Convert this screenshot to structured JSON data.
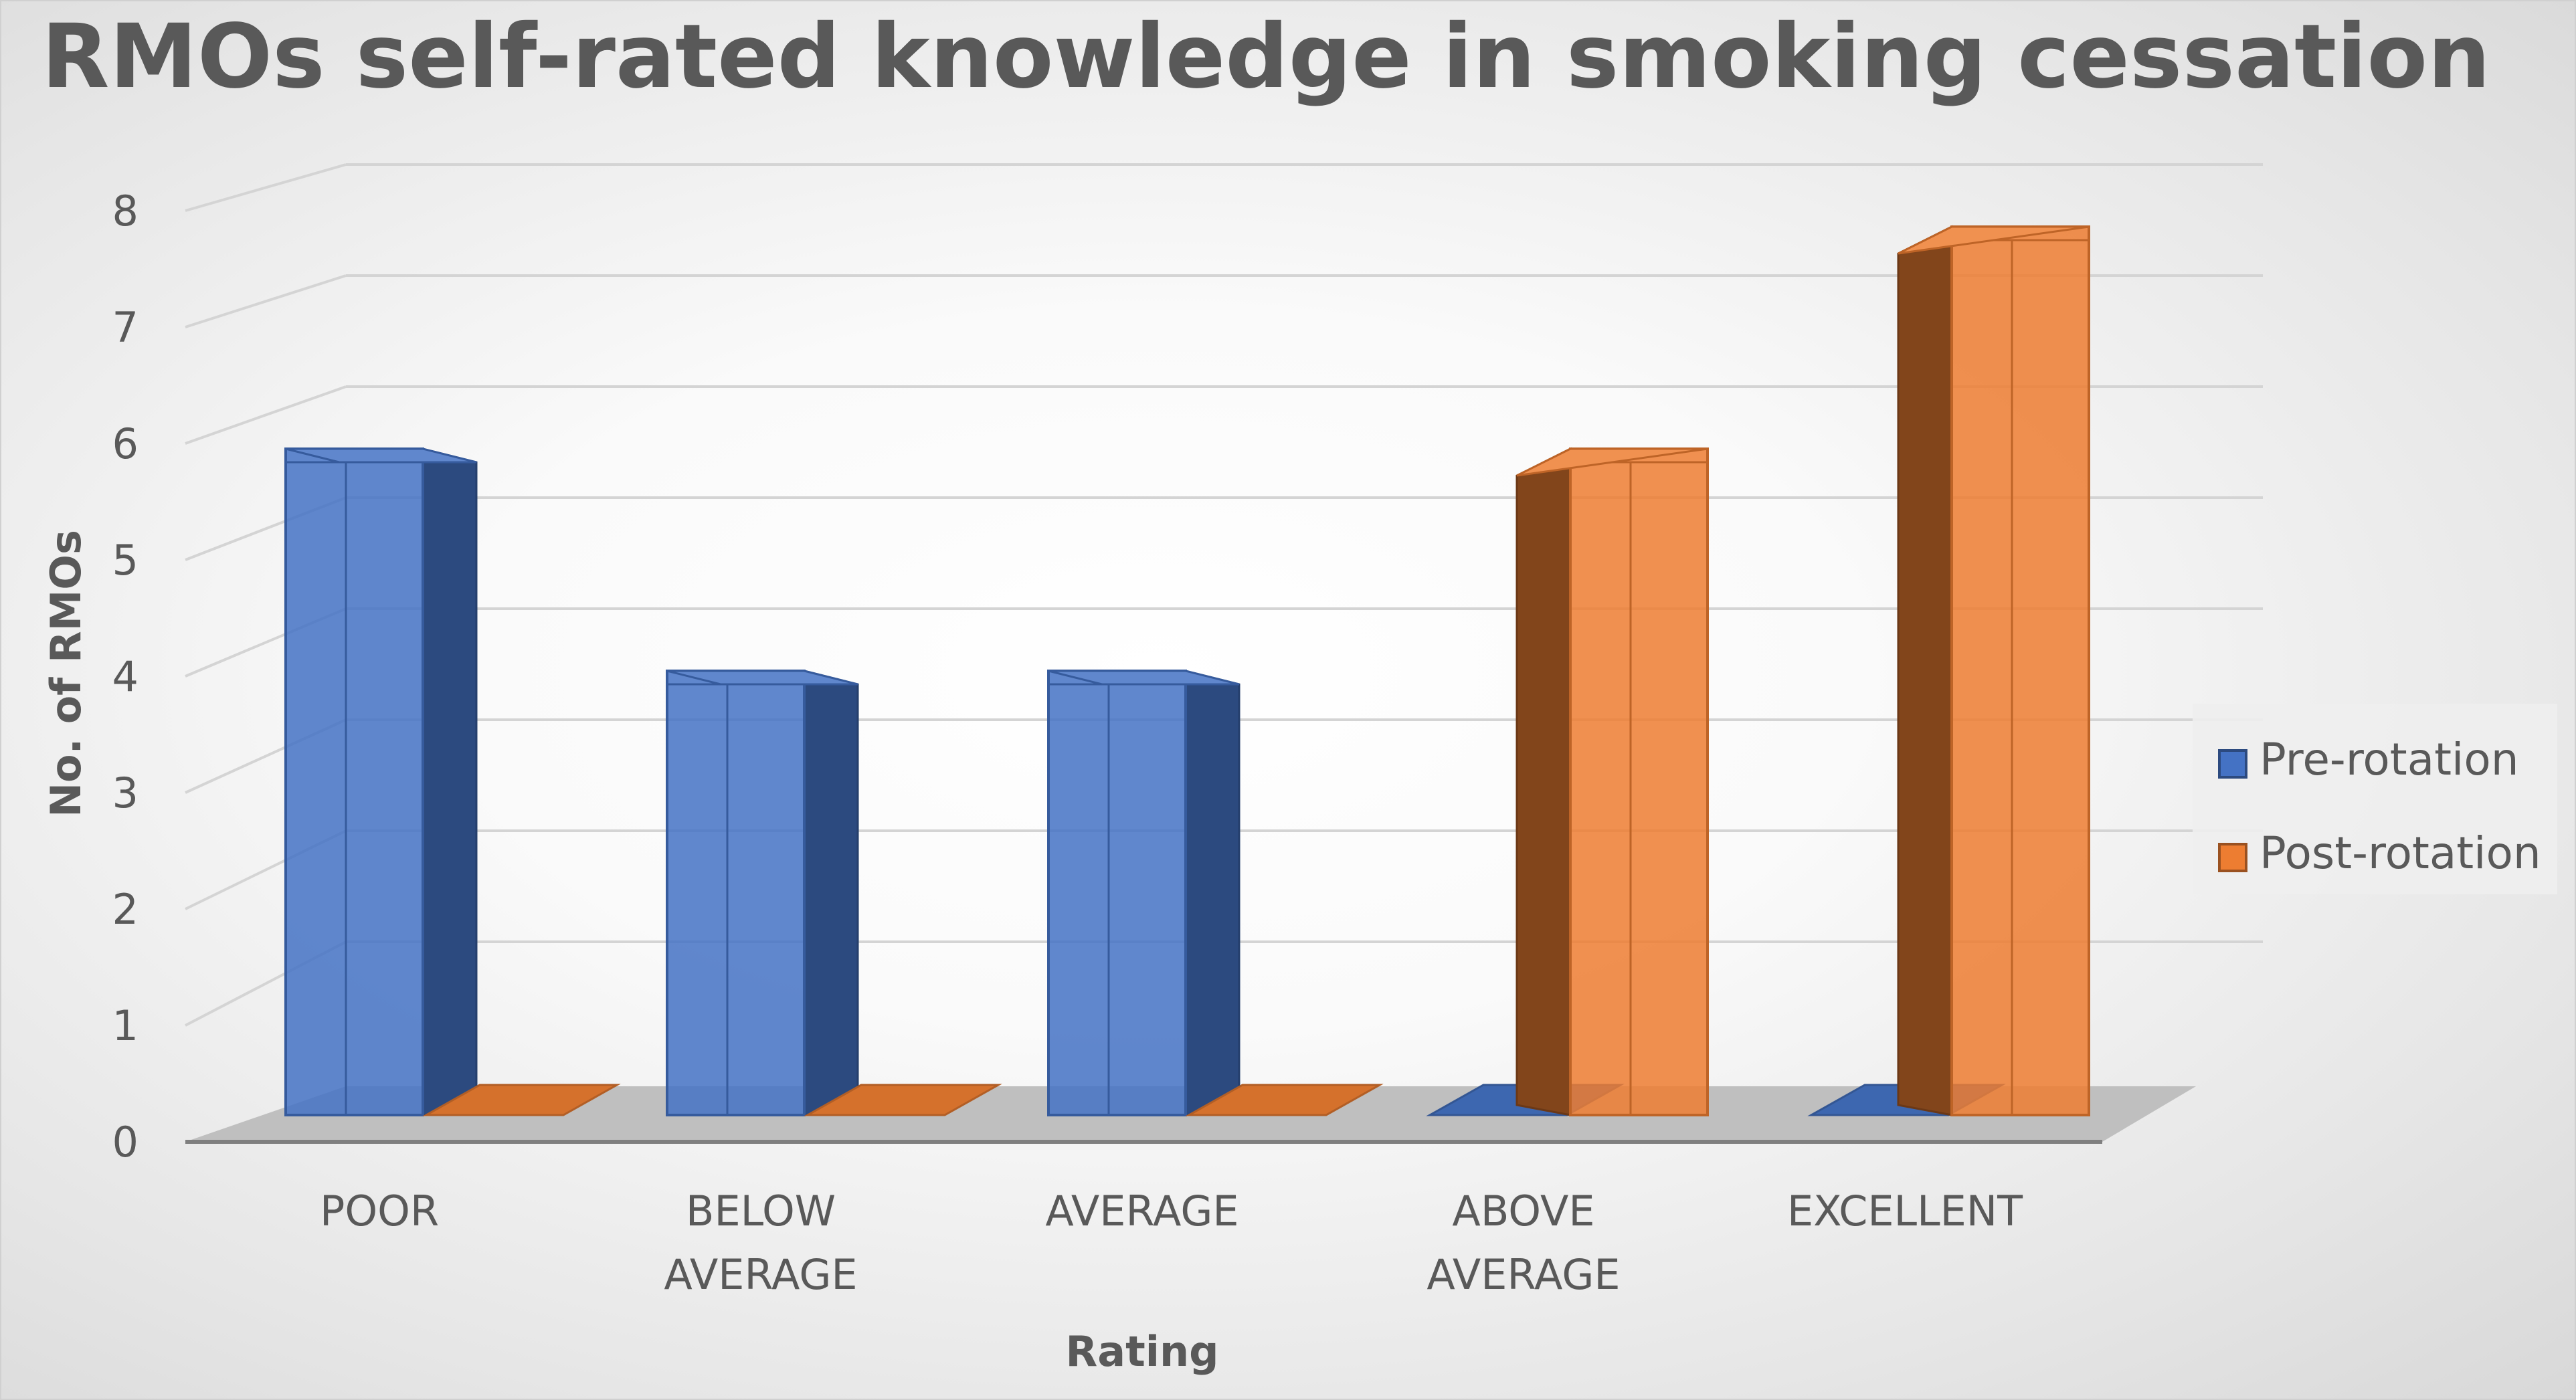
{
  "chart_data": {
    "type": "bar",
    "title": "RMOs self-rated knowledge in smoking cessation",
    "xlabel": "Rating",
    "ylabel": "No. of RMOs",
    "ylim": [
      0,
      8
    ],
    "yticks": [
      "0",
      "1",
      "2",
      "3",
      "4",
      "5",
      "6",
      "7",
      "8"
    ],
    "categories": [
      [
        "POOR"
      ],
      [
        "BELOW",
        "AVERAGE"
      ],
      [
        "AVERAGE"
      ],
      [
        "ABOVE",
        "AVERAGE"
      ],
      [
        "EXCELLENT"
      ]
    ],
    "series": [
      {
        "name": "Pre-rotation",
        "values": [
          6,
          4,
          4,
          0,
          0
        ],
        "color": "#4472c4"
      },
      {
        "name": "Post-rotation",
        "values": [
          0,
          0,
          0,
          6,
          8
        ],
        "color": "#ed7d31"
      }
    ],
    "grid": true,
    "style": "3d-column",
    "legend_position": "right"
  }
}
